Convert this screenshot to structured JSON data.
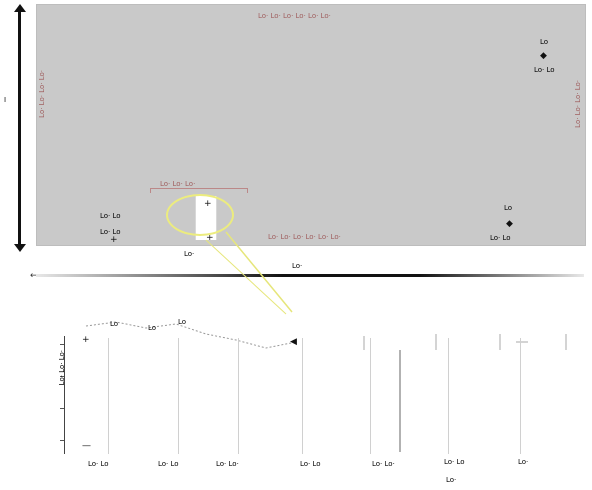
{
  "overview": {
    "top_label": "Lo· Lo· Lo· Lo· Lo· Lo·",
    "bottom_label": "Lo· Lo· Lo· Lo· Lo· Lo·",
    "left_vertical_label": "Lo· Lo· Lo· Lo·",
    "right_vertical_label": "Lo· Lo· Lo· Lo·",
    "bracket_label": "Lo· Lo· Lo·",
    "left_axis_label": "I",
    "cluster_left": {
      "top": "Lo· Lo",
      "bottom": "Lo· Lo"
    },
    "cluster_right_top": {
      "top": "Lo",
      "bottom": "Lo· Lo"
    },
    "cluster_right_bottom": {
      "top": "Lo",
      "bottom": "Lo· Lo"
    },
    "window_label": "Lo·",
    "axis_caption": "Lo·"
  },
  "detail": {
    "y_axis_label": "Lo· Lo· Lo·",
    "x_labels": [
      "Lo· Lo",
      "Lo· Lo",
      "Lo· Lo·",
      "Lo· Lo",
      "Lo· Lo·",
      "Lo· Lo",
      "Lo·"
    ],
    "x_caption": "Lo·",
    "peak_labels": [
      "Lo",
      "Lo",
      "Lo"
    ]
  },
  "colors": {
    "panel": "#c9c9c9",
    "highlight": "#ecec7e",
    "annotation": "#a06060"
  }
}
